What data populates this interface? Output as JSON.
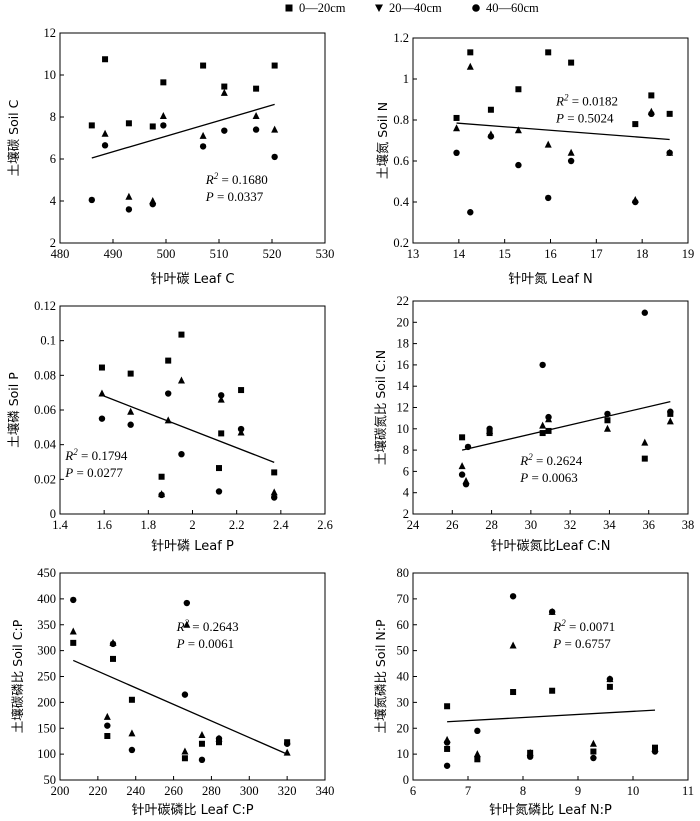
{
  "legend": {
    "items": [
      {
        "label": "0—20cm",
        "marker": "square-icon"
      },
      {
        "label": "20—40cm",
        "marker": "triangle-down-icon"
      },
      {
        "label": "40—60cm",
        "marker": "circle-icon"
      }
    ],
    "color": "#000000"
  },
  "chart_data": [
    {
      "type": "scatter",
      "xlabel": "针叶碳  Leaf C",
      "ylabel": "土壤碳 Soil C",
      "xlim": [
        480,
        530
      ],
      "ylim": [
        2,
        12
      ],
      "xticks": [
        480,
        490,
        500,
        510,
        520,
        530
      ],
      "yticks": [
        2,
        4,
        6,
        8,
        10,
        12
      ],
      "annotation": {
        "r2_prefix": "R",
        "r2_sup": "2",
        "r2_value": " = 0.1680",
        "p_prefix": "P",
        "p_value": " = 0.0337"
      },
      "fit": {
        "x": [
          486,
          520.5
        ],
        "y": [
          6.05,
          8.6
        ]
      },
      "series": [
        {
          "marker": "square",
          "x": [
            486,
            488.5,
            493,
            497.5,
            499.5,
            507,
            511,
            517,
            520.5
          ],
          "y": [
            7.6,
            10.75,
            7.7,
            7.55,
            9.65,
            10.45,
            9.45,
            9.35,
            10.45
          ]
        },
        {
          "marker": "triangle",
          "x": [
            488.5,
            493,
            497.5,
            499.5,
            507,
            511,
            517,
            520.5
          ],
          "y": [
            7.2,
            4.2,
            4.0,
            8.05,
            7.1,
            9.15,
            8.05,
            7.4
          ]
        },
        {
          "marker": "circle",
          "x": [
            486,
            488.5,
            493,
            497.5,
            499.5,
            507,
            511,
            517,
            520.5
          ],
          "y": [
            4.05,
            6.65,
            3.6,
            3.85,
            7.6,
            6.6,
            7.35,
            7.4,
            6.1
          ]
        }
      ]
    },
    {
      "type": "scatter",
      "xlabel": "针叶氮  Leaf N",
      "ylabel": "土壤氮 Soil N",
      "xlim": [
        13,
        19
      ],
      "ylim": [
        0.2,
        1.2
      ],
      "xticks": [
        13,
        14,
        15,
        16,
        17,
        18,
        19
      ],
      "yticks": [
        0.2,
        0.4,
        0.6,
        0.8,
        1.0,
        1.2
      ],
      "annotation": {
        "r2_prefix": "R",
        "r2_sup": "2",
        "r2_value": " = 0.0182",
        "p_prefix": "P",
        "p_value": " = 0.5024"
      },
      "fit": {
        "x": [
          13.95,
          18.6
        ],
        "y": [
          0.785,
          0.705
        ]
      },
      "series": [
        {
          "marker": "square",
          "x": [
            13.95,
            14.25,
            14.7,
            15.3,
            15.95,
            16.45,
            17.85,
            18.2,
            18.6
          ],
          "y": [
            0.81,
            1.13,
            0.85,
            0.95,
            1.13,
            1.08,
            0.78,
            0.92,
            0.83
          ]
        },
        {
          "marker": "triangle",
          "x": [
            13.95,
            14.25,
            14.7,
            15.3,
            15.95,
            16.45,
            17.85,
            18.2,
            18.6
          ],
          "y": [
            0.76,
            1.06,
            0.73,
            0.75,
            0.68,
            0.64,
            0.41,
            0.84,
            0.64
          ]
        },
        {
          "marker": "circle",
          "x": [
            13.95,
            14.25,
            14.7,
            15.3,
            15.95,
            16.45,
            17.85,
            18.2,
            18.6
          ],
          "y": [
            0.64,
            0.35,
            0.72,
            0.58,
            0.42,
            0.6,
            0.4,
            0.83,
            0.64
          ]
        }
      ]
    },
    {
      "type": "scatter",
      "xlabel": "针叶磷  Leaf P",
      "ylabel": "土壤磷 Soil P",
      "xlim": [
        1.4,
        2.6
      ],
      "ylim": [
        0,
        0.12
      ],
      "xticks": [
        1.4,
        1.6,
        1.8,
        2.0,
        2.2,
        2.4,
        2.6
      ],
      "yticks": [
        0,
        0.02,
        0.04,
        0.06,
        0.08,
        0.1,
        0.12
      ],
      "annotation": {
        "r2_prefix": "R",
        "r2_sup": "2",
        "r2_value": " = 0.1794",
        "p_prefix": "P",
        "p_value": " = 0.0277"
      },
      "fit": {
        "x": [
          1.59,
          2.37
        ],
        "y": [
          0.0685,
          0.0298
        ]
      },
      "series": [
        {
          "marker": "square",
          "x": [
            1.59,
            1.72,
            1.86,
            1.89,
            1.95,
            2.12,
            2.13,
            2.22,
            2.37
          ],
          "y": [
            0.0845,
            0.081,
            0.0215,
            0.0885,
            0.1035,
            0.0265,
            0.0465,
            0.0715,
            0.024
          ]
        },
        {
          "marker": "triangle",
          "x": [
            1.59,
            1.72,
            1.86,
            1.89,
            1.95,
            2.13,
            2.22,
            2.37
          ],
          "y": [
            0.0695,
            0.059,
            0.0115,
            0.054,
            0.077,
            0.066,
            0.047,
            0.0125
          ]
        },
        {
          "marker": "circle",
          "x": [
            1.59,
            1.72,
            1.86,
            1.89,
            1.95,
            2.12,
            2.13,
            2.22,
            2.37
          ],
          "y": [
            0.055,
            0.0515,
            0.011,
            0.0695,
            0.0345,
            0.013,
            0.0685,
            0.049,
            0.0095
          ]
        }
      ]
    },
    {
      "type": "scatter",
      "xlabel": "针叶碳氮比Leaf C:N",
      "ylabel": "土壤碳氮比  Soil C:N",
      "xlim": [
        24,
        38
      ],
      "ylim": [
        2,
        22
      ],
      "xticks": [
        24,
        26,
        28,
        30,
        32,
        34,
        36,
        38
      ],
      "yticks": [
        2,
        4,
        6,
        8,
        10,
        12,
        14,
        16,
        18,
        20,
        22
      ],
      "annotation": {
        "r2_prefix": "R",
        "r2_sup": "2",
        "r2_value": " = 0.2624",
        "p_prefix": "P",
        "p_value": " = 0.0063"
      },
      "fit": {
        "x": [
          26.5,
          37.1
        ],
        "y": [
          8.0,
          12.55
        ]
      },
      "series": [
        {
          "marker": "square",
          "x": [
            26.5,
            27.9,
            30.6,
            30.9,
            33.9,
            35.8,
            37.1
          ],
          "y": [
            9.2,
            9.6,
            9.6,
            9.8,
            10.8,
            7.2,
            11.4
          ]
        },
        {
          "marker": "triangle",
          "x": [
            26.5,
            26.7,
            27.9,
            30.6,
            30.9,
            33.9,
            35.8,
            37.1
          ],
          "y": [
            6.5,
            5.1,
            9.8,
            10.3,
            10.9,
            10.0,
            8.7,
            10.7
          ]
        },
        {
          "marker": "circle",
          "x": [
            26.5,
            26.7,
            26.8,
            27.9,
            30.6,
            30.9,
            33.9,
            35.8,
            37.1
          ],
          "y": [
            5.7,
            4.8,
            8.3,
            10.0,
            16.0,
            11.1,
            11.4,
            20.9,
            11.6
          ]
        }
      ]
    },
    {
      "type": "scatter",
      "xlabel": "针叶碳磷比  Leaf C:P",
      "ylabel": "土壤碳磷比  Soil C:P",
      "xlim": [
        200,
        340
      ],
      "ylim": [
        50,
        450
      ],
      "xticks": [
        200,
        220,
        240,
        260,
        280,
        300,
        320,
        340
      ],
      "yticks": [
        50,
        100,
        150,
        200,
        250,
        300,
        350,
        400,
        450
      ],
      "annotation": {
        "r2_prefix": "R",
        "r2_sup": "2",
        "r2_value": " = 0.2643",
        "p_prefix": "P",
        "p_value": " = 0.0061"
      },
      "fit": {
        "x": [
          207,
          320
        ],
        "y": [
          281,
          100
        ]
      },
      "series": [
        {
          "marker": "square",
          "x": [
            207,
            225,
            228,
            238,
            266,
            275,
            284,
            320
          ],
          "y": [
            315,
            135,
            284,
            205,
            92,
            120,
            123,
            123
          ]
        },
        {
          "marker": "triangle",
          "x": [
            207,
            225,
            228,
            238,
            266,
            267,
            275,
            284,
            320
          ],
          "y": [
            337,
            172,
            315,
            140,
            105,
            350,
            137,
            130,
            103
          ]
        },
        {
          "marker": "circle",
          "x": [
            207,
            225,
            228,
            238,
            266,
            267,
            275,
            284,
            320
          ],
          "y": [
            398,
            155,
            313,
            108,
            215,
            392,
            89,
            130,
            120
          ]
        }
      ]
    },
    {
      "type": "scatter",
      "xlabel": "针叶氮磷比 Leaf N:P",
      "ylabel": "土壤氮磷比  Soil N:P",
      "xlim": [
        6,
        11
      ],
      "ylim": [
        0,
        80
      ],
      "xticks": [
        6,
        7,
        8,
        9,
        10,
        11
      ],
      "yticks": [
        0,
        10,
        20,
        30,
        40,
        50,
        60,
        70,
        80
      ],
      "annotation": {
        "r2_prefix": "R",
        "r2_sup": "2",
        "r2_value": " = 0.0071",
        "p_prefix": "P",
        "p_value": " = 0.6757"
      },
      "fit": {
        "x": [
          6.62,
          10.4
        ],
        "y": [
          22.5,
          27.0
        ]
      },
      "series": [
        {
          "marker": "square",
          "x": [
            6.62,
            6.62,
            7.17,
            7.82,
            8.13,
            8.53,
            9.28,
            9.58,
            10.4
          ],
          "y": [
            28.5,
            12.0,
            8.0,
            34.0,
            10.5,
            34.5,
            11.0,
            36.0,
            12.5
          ]
        },
        {
          "marker": "triangle",
          "x": [
            6.62,
            7.17,
            7.82,
            8.13,
            8.53,
            9.28,
            9.58,
            10.4
          ],
          "y": [
            15.5,
            10.0,
            52.0,
            10.5,
            65.0,
            14.0,
            39.0,
            12.0
          ]
        },
        {
          "marker": "circle",
          "x": [
            6.62,
            6.62,
            7.17,
            7.82,
            8.13,
            8.53,
            9.28,
            9.58,
            10.4
          ],
          "y": [
            14.5,
            5.5,
            19.0,
            71.0,
            9.0,
            65.0,
            8.5,
            39.0,
            11.0
          ]
        }
      ]
    }
  ]
}
